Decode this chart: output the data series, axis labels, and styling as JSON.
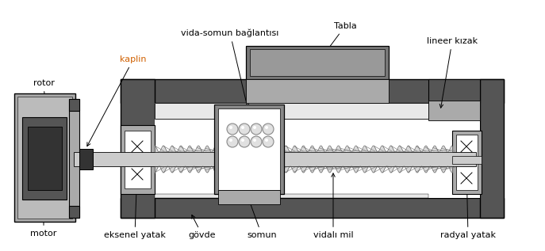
{
  "fig_width": 6.87,
  "fig_height": 3.17,
  "dpi": 100,
  "bg_color": "#ffffff",
  "c_dark": "#555555",
  "c_mid": "#999999",
  "c_light": "#cccccc",
  "c_vlight": "#e8e8e8",
  "c_black": "#000000",
  "c_motor_dark": "#333333",
  "c_rotor": "#222222",
  "c_ball": "#dddddd",
  "c_thread": "#c0c0c0",
  "label_fs": 8.0,
  "orange": "#d06000",
  "labels": {
    "kaplin": "kaplin",
    "rotor": "rotor",
    "motor": "motor",
    "vida_somun": "vida-somun bağlantısı",
    "tabla": "Tabla",
    "lineer_kizak": "lineer kızak",
    "eksenel_yatak": "eksenel yatak",
    "govde": "gövde",
    "somun": "somun",
    "vidali_mil": "vidalı mil",
    "radyal_yatak": "radyal yatak"
  }
}
